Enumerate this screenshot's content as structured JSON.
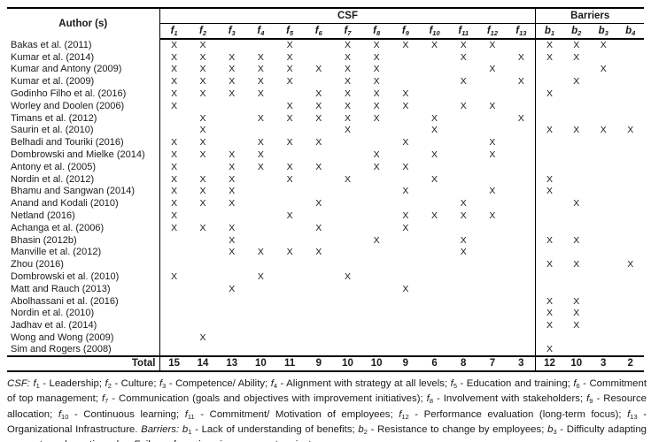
{
  "table": {
    "header": {
      "author": "Author (s)",
      "csf_group": "CSF",
      "barriers_group": "Barriers"
    },
    "csf_symbol": "f",
    "barrier_symbol": "b",
    "csf_columns": [
      "1",
      "2",
      "3",
      "4",
      "5",
      "6",
      "7",
      "8",
      "9",
      "10",
      "11",
      "12",
      "13"
    ],
    "barrier_columns": [
      "1",
      "2",
      "3",
      "4"
    ],
    "mark": "X",
    "rows": [
      {
        "author": "Bakas et al. (2011)",
        "csf": [
          1,
          2,
          5,
          7,
          8,
          9,
          10,
          11,
          12
        ],
        "barriers": [
          1,
          2,
          3
        ]
      },
      {
        "author": "Kumar et al. (2014)",
        "csf": [
          1,
          2,
          3,
          4,
          5,
          7,
          8,
          11,
          13
        ],
        "barriers": [
          1,
          2
        ]
      },
      {
        "author": "Kumar and Antony (2009)",
        "csf": [
          1,
          2,
          3,
          4,
          5,
          6,
          7,
          8,
          12
        ],
        "barriers": [
          3
        ]
      },
      {
        "author": "Kumar et al. (2009)",
        "csf": [
          1,
          2,
          3,
          4,
          5,
          7,
          8,
          11,
          13
        ],
        "barriers": [
          2
        ]
      },
      {
        "author": "Godinho Filho et al. (2016)",
        "csf": [
          1,
          2,
          3,
          4,
          6,
          7,
          8,
          9
        ],
        "barriers": [
          1
        ]
      },
      {
        "author": "Worley and Doolen (2006)",
        "csf": [
          1,
          5,
          6,
          7,
          8,
          9,
          11,
          12
        ],
        "barriers": []
      },
      {
        "author": "Timans et al. (2012)",
        "csf": [
          2,
          4,
          5,
          6,
          7,
          8,
          10,
          13
        ],
        "barriers": []
      },
      {
        "author": "Saurin et al. (2010)",
        "csf": [
          2,
          7,
          10
        ],
        "barriers": [
          1,
          2,
          3,
          4
        ]
      },
      {
        "author": "Belhadi and Touriki (2016)",
        "csf": [
          1,
          2,
          4,
          5,
          6,
          9,
          12
        ],
        "barriers": []
      },
      {
        "author": "Dombrowski and Mielke (2014)",
        "csf": [
          1,
          2,
          3,
          4,
          8,
          10,
          12
        ],
        "barriers": []
      },
      {
        "author": "Antony et al. (2005)",
        "csf": [
          1,
          3,
          4,
          5,
          6,
          8,
          9
        ],
        "barriers": []
      },
      {
        "author": "Nordin et al. (2012)",
        "csf": [
          1,
          2,
          3,
          5,
          7,
          10
        ],
        "barriers": [
          1
        ]
      },
      {
        "author": "Bhamu and Sangwan (2014)",
        "csf": [
          1,
          2,
          3,
          9,
          12
        ],
        "barriers": [
          1
        ]
      },
      {
        "author": "Anand and Kodali (2010)",
        "csf": [
          1,
          2,
          3,
          6,
          11
        ],
        "barriers": [
          2
        ]
      },
      {
        "author": "Netland (2016)",
        "csf": [
          1,
          5,
          9,
          10,
          11,
          12
        ],
        "barriers": []
      },
      {
        "author": "Achanga et al. (2006)",
        "csf": [
          1,
          2,
          3,
          6,
          9
        ],
        "barriers": []
      },
      {
        "author": "Bhasin (2012b)",
        "csf": [
          3,
          8,
          11
        ],
        "barriers": [
          1,
          2
        ]
      },
      {
        "author": "Manville et al. (2012)",
        "csf": [
          3,
          4,
          5,
          6,
          11
        ],
        "barriers": []
      },
      {
        "author": "Zhou (2016)",
        "csf": [],
        "barriers": [
          1,
          2,
          4
        ]
      },
      {
        "author": "Dombrowski et al. (2010)",
        "csf": [
          1,
          4,
          7
        ],
        "barriers": []
      },
      {
        "author": "Matt and Rauch (2013)",
        "csf": [
          3,
          9
        ],
        "barriers": []
      },
      {
        "author": "Abolhassani et al. (2016)",
        "csf": [],
        "barriers": [
          1,
          2
        ]
      },
      {
        "author": "Nordin et al. (2010)",
        "csf": [],
        "barriers": [
          1,
          2
        ]
      },
      {
        "author": "Jadhav et al. (2014)",
        "csf": [],
        "barriers": [
          1,
          2
        ]
      },
      {
        "author": "Wong and Wong (2009)",
        "csf": [
          2
        ],
        "barriers": []
      },
      {
        "author": "Sim and Rogers (2008)",
        "csf": [],
        "barriers": [
          1
        ]
      }
    ],
    "total": {
      "label": "Total",
      "csf": [
        15,
        14,
        13,
        10,
        11,
        9,
        10,
        10,
        9,
        6,
        8,
        7,
        3
      ],
      "barriers": [
        12,
        10,
        3,
        2
      ]
    }
  },
  "footnote": {
    "csf_label": "CSF:",
    "barriers_label": "Barriers:",
    "csf_definitions": [
      {
        "index": "1",
        "text": "Leadership"
      },
      {
        "index": "2",
        "text": "Culture"
      },
      {
        "index": "3",
        "text": "Competence/ Ability"
      },
      {
        "index": "4",
        "text": "Alignment with strategy at all levels"
      },
      {
        "index": "5",
        "text": "Education and training"
      },
      {
        "index": "6",
        "text": "Commitment of top management"
      },
      {
        "index": "7",
        "text": "Communication (goals and objectives with improvement initiatives)"
      },
      {
        "index": "8",
        "text": "Involvement with stakeholders"
      },
      {
        "index": "9",
        "text": "Resource allocation"
      },
      {
        "index": "10",
        "text": "Continuous learning"
      },
      {
        "index": "11",
        "text": "Commitment/ Motivation of employees"
      },
      {
        "index": "12",
        "text": "Performance evaluation (long-term focus)"
      },
      {
        "index": "13",
        "text": "Organizational Infrastructure"
      }
    ],
    "barrier_definitions": [
      {
        "index": "1",
        "text": "Lack of understanding of benefits"
      },
      {
        "index": "2",
        "text": "Resistance to change by employees"
      },
      {
        "index": "3",
        "text": "Difficulty adapting concepts and practices"
      },
      {
        "index": "4",
        "text": "Failure of previous improvement projects"
      }
    ]
  },
  "colors": {
    "background": "#ffffff",
    "text": "#1a1a1a",
    "border": "#000000"
  }
}
